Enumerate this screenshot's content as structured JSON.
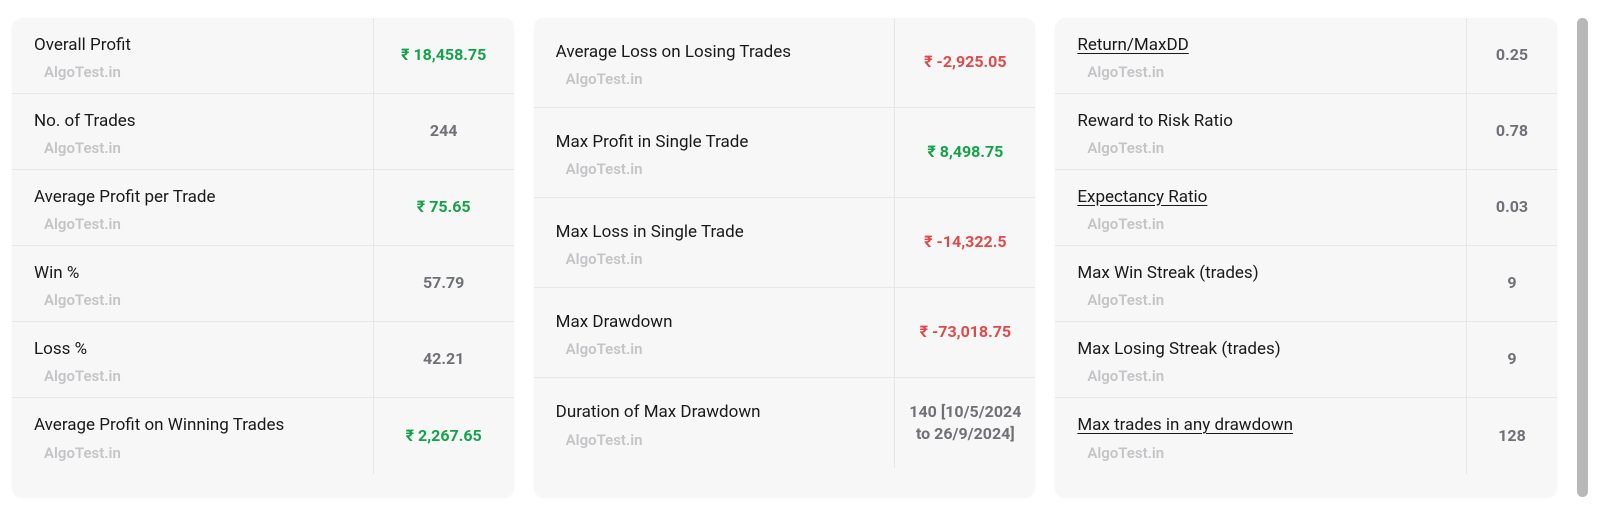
{
  "watermark": "AlgoTest.in",
  "colors": {
    "profit": "#15a34a",
    "loss": "#e24a4a",
    "neutral": "#6f7176",
    "bg": "#f7f7f8",
    "border": "#e7e7e9",
    "watermark": "#c4c4c7",
    "label": "#1a1a1a"
  },
  "cards": [
    {
      "rows": [
        {
          "label": "Overall Profit",
          "value": "₹ 18,458.75",
          "style": "profit",
          "underline": false,
          "tall": false
        },
        {
          "label": "No. of Trades",
          "value": "244",
          "style": "neutral",
          "underline": false,
          "tall": false
        },
        {
          "label": "Average Profit per Trade",
          "value": "₹ 75.65",
          "style": "profit",
          "underline": false,
          "tall": false
        },
        {
          "label": "Win %",
          "value": "57.79",
          "style": "neutral",
          "underline": false,
          "tall": false
        },
        {
          "label": "Loss %",
          "value": "42.21",
          "style": "neutral",
          "underline": false,
          "tall": false
        },
        {
          "label": "Average Profit on Winning Trades",
          "value": "₹ 2,267.65",
          "style": "profit",
          "underline": false,
          "tall": false
        }
      ],
      "valueWidth": "wide"
    },
    {
      "rows": [
        {
          "label": "Average Loss on Losing Trades",
          "value": "₹ -2,925.05",
          "style": "loss",
          "underline": false,
          "tall": true
        },
        {
          "label": "Max Profit in Single Trade",
          "value": "₹ 8,498.75",
          "style": "profit",
          "underline": false,
          "tall": true
        },
        {
          "label": "Max Loss in Single Trade",
          "value": "₹ -14,322.5",
          "style": "loss",
          "underline": false,
          "tall": true
        },
        {
          "label": "Max Drawdown",
          "value": "₹ -73,018.75",
          "style": "loss",
          "underline": false,
          "tall": true
        },
        {
          "label": "Duration of Max Drawdown",
          "value": "140 [10/5/2024 to 26/9/2024]",
          "style": "neutral",
          "underline": false,
          "tall": true
        }
      ],
      "valueWidth": "wide"
    },
    {
      "rows": [
        {
          "label": "Return/MaxDD",
          "value": "0.25",
          "style": "neutral",
          "underline": true,
          "tall": false
        },
        {
          "label": "Reward to Risk Ratio",
          "value": "0.78",
          "style": "neutral",
          "underline": false,
          "tall": false
        },
        {
          "label": "Expectancy Ratio",
          "value": "0.03",
          "style": "neutral",
          "underline": true,
          "tall": false
        },
        {
          "label": "Max Win Streak (trades)",
          "value": "9",
          "style": "neutral",
          "underline": false,
          "tall": false
        },
        {
          "label": "Max Losing Streak (trades)",
          "value": "9",
          "style": "neutral",
          "underline": false,
          "tall": false
        },
        {
          "label": "Max trades in any drawdown",
          "value": "128",
          "style": "neutral",
          "underline": true,
          "tall": false
        }
      ],
      "valueWidth": "narrow"
    }
  ]
}
